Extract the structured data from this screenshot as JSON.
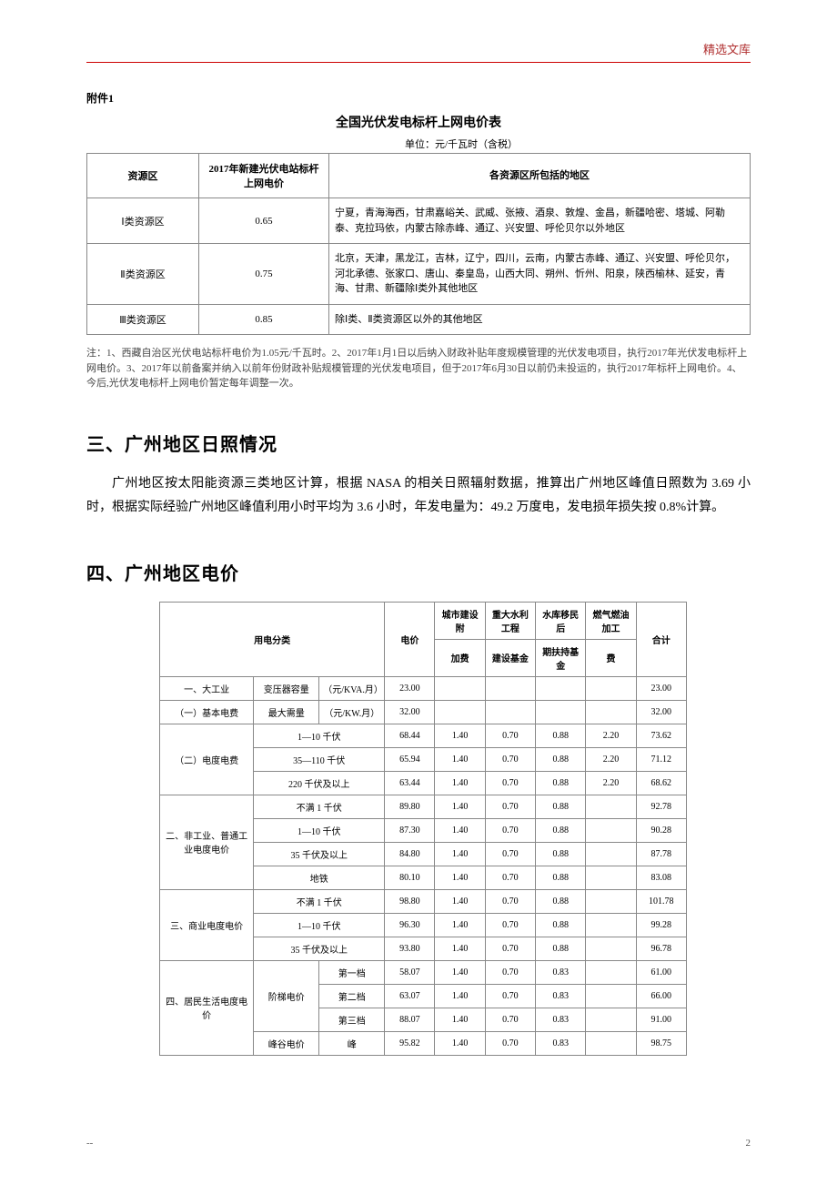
{
  "header": {
    "brand": "精选文库"
  },
  "attachment_label": "附件1",
  "table1": {
    "title": "全国光伏发电标杆上网电价表",
    "unit": "单位：元/千瓦时（含税）",
    "headers": {
      "zone": "资源区",
      "price": "2017年新建光伏电站标杆上网电价",
      "areas": "各资源区所包括的地区"
    },
    "rows": [
      {
        "zone": "Ⅰ类资源区",
        "price": "0.65",
        "areas": "宁夏，青海海西，甘肃嘉峪关、武威、张掖、酒泉、敦煌、金昌，新疆哈密、塔城、阿勒泰、克拉玛依，内蒙古除赤峰、通辽、兴安盟、呼伦贝尔以外地区"
      },
      {
        "zone": "Ⅱ类资源区",
        "price": "0.75",
        "areas": "北京，天津，黑龙江，吉林，辽宁，四川，云南，内蒙古赤峰、通辽、兴安盟、呼伦贝尔，河北承德、张家口、唐山、秦皇岛，山西大同、朔州、忻州、阳泉，陕西榆林、延安，青海、甘肃、新疆除Ⅰ类外其他地区"
      },
      {
        "zone": "Ⅲ类资源区",
        "price": "0.85",
        "areas": "除Ⅰ类、Ⅱ类资源区以外的其他地区"
      }
    ],
    "note": "注：1、西藏自治区光伏电站标杆电价为1.05元/千瓦时。2、2017年1月1日以后纳入财政补贴年度规模管理的光伏发电项目，执行2017年光伏发电标杆上网电价。3、2017年以前备案并纳入以前年份财政补贴规模管理的光伏发电项目，但于2017年6月30日以前仍未投运的，执行2017年标杆上网电价。4、今后,光伏发电标杆上网电价暂定每年调整一次。"
  },
  "section_3": {
    "heading": "三、广州地区日照情况",
    "paragraph": "广州地区按太阳能资源三类地区计算，根据 NASA 的相关日照辐射数据，推算出广州地区峰值日照数为 3.69 小时，根据实际经验广州地区峰值利用小时平均为 3.6 小时，年发电量为：49.2 万度电，发电损年损失按 0.8%计算。"
  },
  "section_4": {
    "heading": "四、广州地区电价",
    "headers": {
      "category": "用电分类",
      "price": "电价",
      "surcharge_top": "城市建设附",
      "surcharge_bot": "加费",
      "water_top": "重大水利工程",
      "water_bot": "建设基金",
      "migrant_top": "水库移民后",
      "migrant_bot": "期扶持基金",
      "gas_top": "燃气燃油加工",
      "gas_bot": "费",
      "total": "合计"
    },
    "rows": [
      {
        "c1": "一、大工业",
        "c2": "变压器容量",
        "c3": "（元/KVA.月）",
        "price": "23.00",
        "f1": "",
        "f2": "",
        "f3": "",
        "f4": "",
        "total": "23.00"
      },
      {
        "c1": "（一）基本电费",
        "c2": "最大需量",
        "c3": "（元/KW.月）",
        "price": "32.00",
        "f1": "",
        "f2": "",
        "f3": "",
        "f4": "",
        "total": "32.00"
      },
      {
        "c1": "（二）电度电费",
        "rs1": 3,
        "c2": "1—10 千伏",
        "cs2": 2,
        "price": "68.44",
        "f1": "1.40",
        "f2": "0.70",
        "f3": "0.88",
        "f4": "2.20",
        "total": "73.62"
      },
      {
        "c2": "35—110 千伏",
        "cs2": 2,
        "price": "65.94",
        "f1": "1.40",
        "f2": "0.70",
        "f3": "0.88",
        "f4": "2.20",
        "total": "71.12"
      },
      {
        "c2": "220 千伏及以上",
        "cs2": 2,
        "price": "63.44",
        "f1": "1.40",
        "f2": "0.70",
        "f3": "0.88",
        "f4": "2.20",
        "total": "68.62"
      },
      {
        "c1": "二、非工业、普通工业电度电价",
        "rs1": 4,
        "c2": "不满 1 千伏",
        "cs2": 2,
        "price": "89.80",
        "f1": "1.40",
        "f2": "0.70",
        "f3": "0.88",
        "f4": "",
        "total": "92.78"
      },
      {
        "c2": "1—10 千伏",
        "cs2": 2,
        "price": "87.30",
        "f1": "1.40",
        "f2": "0.70",
        "f3": "0.88",
        "f4": "",
        "total": "90.28"
      },
      {
        "c2": "35 千伏及以上",
        "cs2": 2,
        "price": "84.80",
        "f1": "1.40",
        "f2": "0.70",
        "f3": "0.88",
        "f4": "",
        "total": "87.78"
      },
      {
        "c2": "地铁",
        "cs2": 2,
        "price": "80.10",
        "f1": "1.40",
        "f2": "0.70",
        "f3": "0.88",
        "f4": "",
        "total": "83.08"
      },
      {
        "c1": "三、商业电度电价",
        "rs1": 3,
        "c2": "不满 1 千伏",
        "cs2": 2,
        "price": "98.80",
        "f1": "1.40",
        "f2": "0.70",
        "f3": "0.88",
        "f4": "",
        "total": "101.78"
      },
      {
        "c2": "1—10 千伏",
        "cs2": 2,
        "price": "96.30",
        "f1": "1.40",
        "f2": "0.70",
        "f3": "0.88",
        "f4": "",
        "total": "99.28"
      },
      {
        "c2": "35 千伏及以上",
        "cs2": 2,
        "price": "93.80",
        "f1": "1.40",
        "f2": "0.70",
        "f3": "0.88",
        "f4": "",
        "total": "96.78"
      },
      {
        "c1": "四、居民生活电度电价",
        "rs1": 4,
        "c2": "阶梯电价",
        "rs2": 3,
        "c3": "第一档",
        "price": "58.07",
        "f1": "1.40",
        "f2": "0.70",
        "f3": "0.83",
        "f4": "",
        "total": "61.00"
      },
      {
        "c3": "第二档",
        "price": "63.07",
        "f1": "1.40",
        "f2": "0.70",
        "f3": "0.83",
        "f4": "",
        "total": "66.00"
      },
      {
        "c3": "第三档",
        "price": "88.07",
        "f1": "1.40",
        "f2": "0.70",
        "f3": "0.83",
        "f4": "",
        "total": "91.00"
      },
      {
        "c2": "峰谷电价",
        "c3": "峰",
        "price": "95.82",
        "f1": "1.40",
        "f2": "0.70",
        "f3": "0.83",
        "f4": "",
        "total": "98.75"
      }
    ]
  },
  "footer": {
    "dash": "--",
    "page": "2"
  },
  "colors": {
    "header_rule": "#c00000",
    "brand_text": "#b03030",
    "border": "#888888",
    "text": "#000000"
  }
}
